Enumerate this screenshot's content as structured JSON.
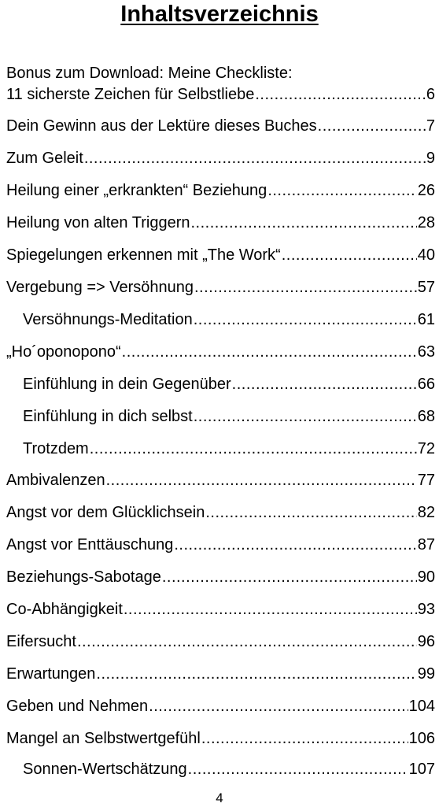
{
  "title": "Inhaltsverzeichnis",
  "entries": [
    {
      "first_line": "Bonus zum Download: Meine Checkliste:",
      "label": "11 sicherste Zeichen für Selbstliebe",
      "page": "6",
      "indent": false
    },
    {
      "label": "Dein Gewinn aus der Lektüre dieses Buches",
      "page": "7",
      "indent": false
    },
    {
      "label": "Zum Geleit",
      "page": "9",
      "indent": false
    },
    {
      "label": "Heilung einer „erkrankten“ Beziehung",
      "page": "26",
      "indent": false
    },
    {
      "label": "Heilung von alten Triggern",
      "page": "28",
      "indent": false
    },
    {
      "label": "Spiegelungen erkennen mit „The Work“",
      "page": "40",
      "indent": false
    },
    {
      "label": "Vergebung => Versöhnung",
      "page": "57",
      "indent": false
    },
    {
      "label": "Versöhnungs-Meditation",
      "page": "61",
      "indent": true
    },
    {
      "label": "„Ho´oponopono“",
      "page": "63",
      "indent": false
    },
    {
      "label": "Einfühlung in dein Gegenüber",
      "page": "66",
      "indent": true
    },
    {
      "label": "Einfühlung in dich selbst",
      "page": "68",
      "indent": true
    },
    {
      "label": "Trotzdem",
      "page": "72",
      "indent": true
    },
    {
      "label": "Ambivalenzen",
      "page": "77",
      "indent": false
    },
    {
      "label": "Angst vor dem Glücklichsein",
      "page": "82",
      "indent": false
    },
    {
      "label": "Angst vor Enttäuschung",
      "page": "87",
      "indent": false
    },
    {
      "label": "Beziehungs-Sabotage",
      "page": "90",
      "indent": false
    },
    {
      "label": "Co-Abhängigkeit",
      "page": "93",
      "indent": false
    },
    {
      "label": "Eifersucht",
      "page": "96",
      "indent": false
    },
    {
      "label": "Erwartungen",
      "page": "99",
      "indent": false
    },
    {
      "label": "Geben und Nehmen",
      "page": "104",
      "indent": false
    },
    {
      "label": "Mangel an Selbstwertgefühl",
      "page": "106",
      "indent": false
    },
    {
      "label": "Sonnen-Wertschätzung",
      "page": "107",
      "indent": true
    }
  ],
  "page_number": "4"
}
